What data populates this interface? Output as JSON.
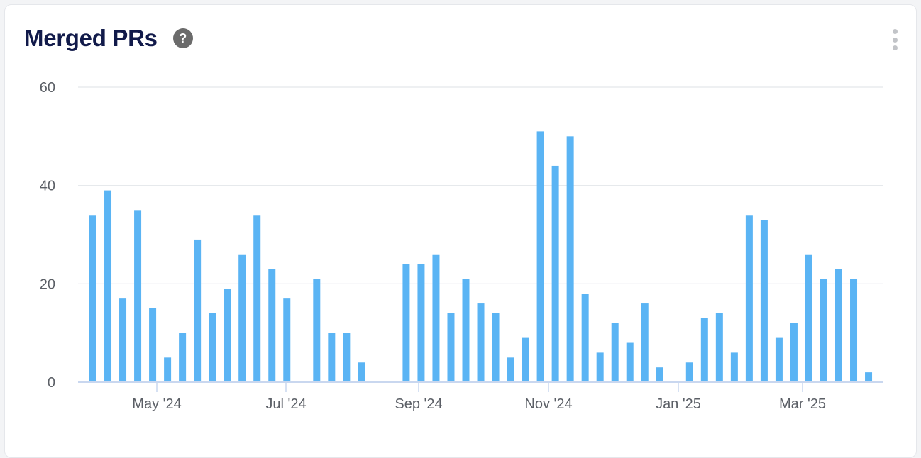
{
  "widget": {
    "title": "Merged PRs",
    "help_icon": "question-circle-icon",
    "menu_icon": "kebab-menu-icon"
  },
  "colors": {
    "bar": "#5ab4f4",
    "grid": "#e3e6ea",
    "axis": "#c9d7ef"
  },
  "chart_data": {
    "type": "bar",
    "title": "Merged PRs",
    "ylim": [
      0,
      60
    ],
    "yticks": [
      0,
      20,
      40,
      60
    ],
    "grid": true,
    "x_tick_labels": [
      "May '24",
      "Jul '24",
      "Sep '24",
      "Nov '24",
      "Jan '25",
      "Mar '25"
    ],
    "series": [
      {
        "values": [
          34,
          39,
          17,
          35,
          15,
          5,
          10,
          29,
          14,
          19,
          26,
          34,
          23,
          17,
          0,
          21,
          10,
          10,
          4,
          0,
          0,
          24,
          24,
          26,
          14,
          21,
          16,
          14,
          5,
          9,
          51,
          44,
          50,
          18,
          6,
          12,
          8,
          16,
          3,
          0,
          4,
          13,
          14,
          6,
          34,
          33,
          9,
          12,
          26,
          21,
          23,
          21,
          2
        ]
      }
    ]
  }
}
